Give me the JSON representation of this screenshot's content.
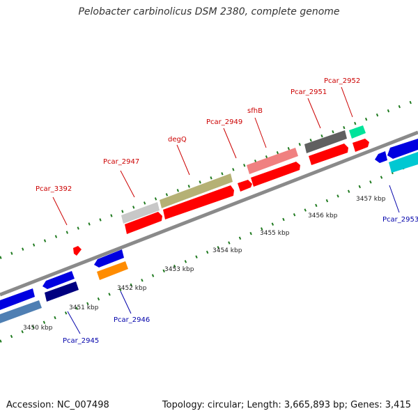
{
  "title": "Pelobacter carbinolicus DSM 2380, complete genome",
  "accession": "Accession: NC_007498",
  "summary": "Topology: circular; Length: 3,665,893 bp; Genes: 3,415",
  "colors": {
    "backbone": "#8a8a8a",
    "tick": "#1f7a1f",
    "forward_label": "#cc0000",
    "reverse_label": "#0000aa",
    "scale_label": "#222222"
  },
  "scale_labels": [
    "3450 kbp",
    "3451 kbp",
    "3452 kbp",
    "3453 kbp",
    "3454 kbp",
    "3455 kbp",
    "3456 kbp",
    "3457 kbp"
  ],
  "forward_genes": [
    {
      "label": "Pcar_3392",
      "color": "#ff0000"
    },
    {
      "label": "Pcar_2947",
      "color": "#c8c8c8"
    },
    {
      "label": "degQ",
      "color": "#b5b175"
    },
    {
      "label": "Pcar_2949",
      "color": "#ff0000"
    },
    {
      "label": "sfhB",
      "color": "#f08080"
    },
    {
      "label": "Pcar_2951",
      "color": "#606060"
    },
    {
      "label": "Pcar_2952",
      "color": "#00e39a"
    }
  ],
  "reverse_genes": [
    {
      "label": "Pcar_2945",
      "color": "#000080"
    },
    {
      "label": "Pcar_2946",
      "color": "#ff8c00"
    },
    {
      "label": "Pcar_2953",
      "color": "#00c8d2"
    }
  ]
}
